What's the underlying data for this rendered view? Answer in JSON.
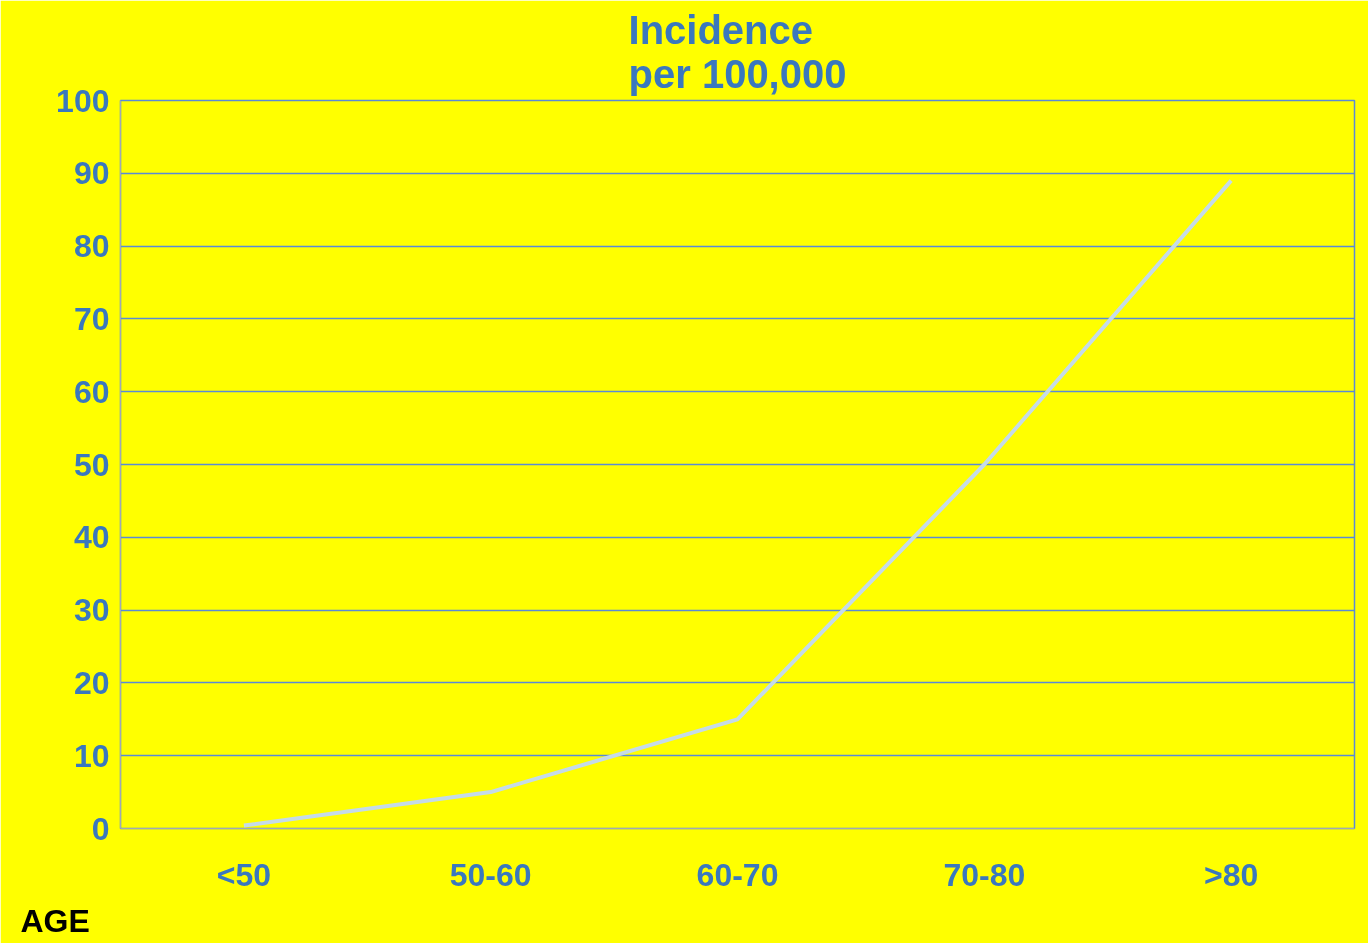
{
  "chart_data": {
    "type": "line",
    "title": "Incidence\nper 100,000",
    "xlabel": "AGE",
    "categories": [
      "<50",
      "50-60",
      "60-70",
      "70-80",
      ">80"
    ],
    "values": [
      0.4,
      5,
      15,
      50,
      89
    ],
    "color": "#c5dbe8",
    "ylim": [
      0,
      100
    ],
    "yticks": [
      0,
      10,
      20,
      30,
      40,
      50,
      60,
      70,
      80,
      90,
      100
    ],
    "grid": "y",
    "marker": "none",
    "line_style": "solid"
  }
}
